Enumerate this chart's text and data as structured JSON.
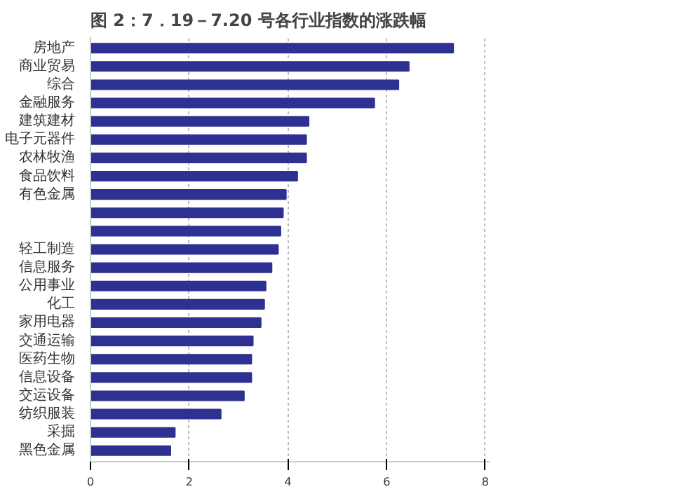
{
  "chart_data": {
    "type": "bar",
    "orientation": "horizontal",
    "title": "图 2：7．19－7.20 号各行业指数的涨跌幅",
    "categories": [
      "房地产",
      "商业贸易",
      "综合",
      "金融服务",
      "建筑建材",
      "电子元器件",
      "农林牧渔",
      "食品饮料",
      "有色金属",
      null,
      null,
      "轻工制造",
      "信息服务",
      "公用事业",
      "化工",
      "家用电器",
      "交通运输",
      "医药生物",
      "信息设备",
      "交运设备",
      "纺织服装",
      "采掘",
      "黑色金属"
    ],
    "values": [
      7.35,
      6.45,
      6.24,
      5.75,
      4.42,
      4.37,
      4.37,
      4.19,
      3.96,
      3.9,
      3.85,
      3.8,
      3.67,
      3.55,
      3.52,
      3.45,
      3.29,
      3.26,
      3.26,
      3.11,
      2.64,
      1.71,
      1.62
    ],
    "color": "#2e3192",
    "xlim": [
      0,
      8.1
    ],
    "xticks": [
      0,
      2,
      4,
      6,
      8
    ],
    "grid": "x"
  }
}
